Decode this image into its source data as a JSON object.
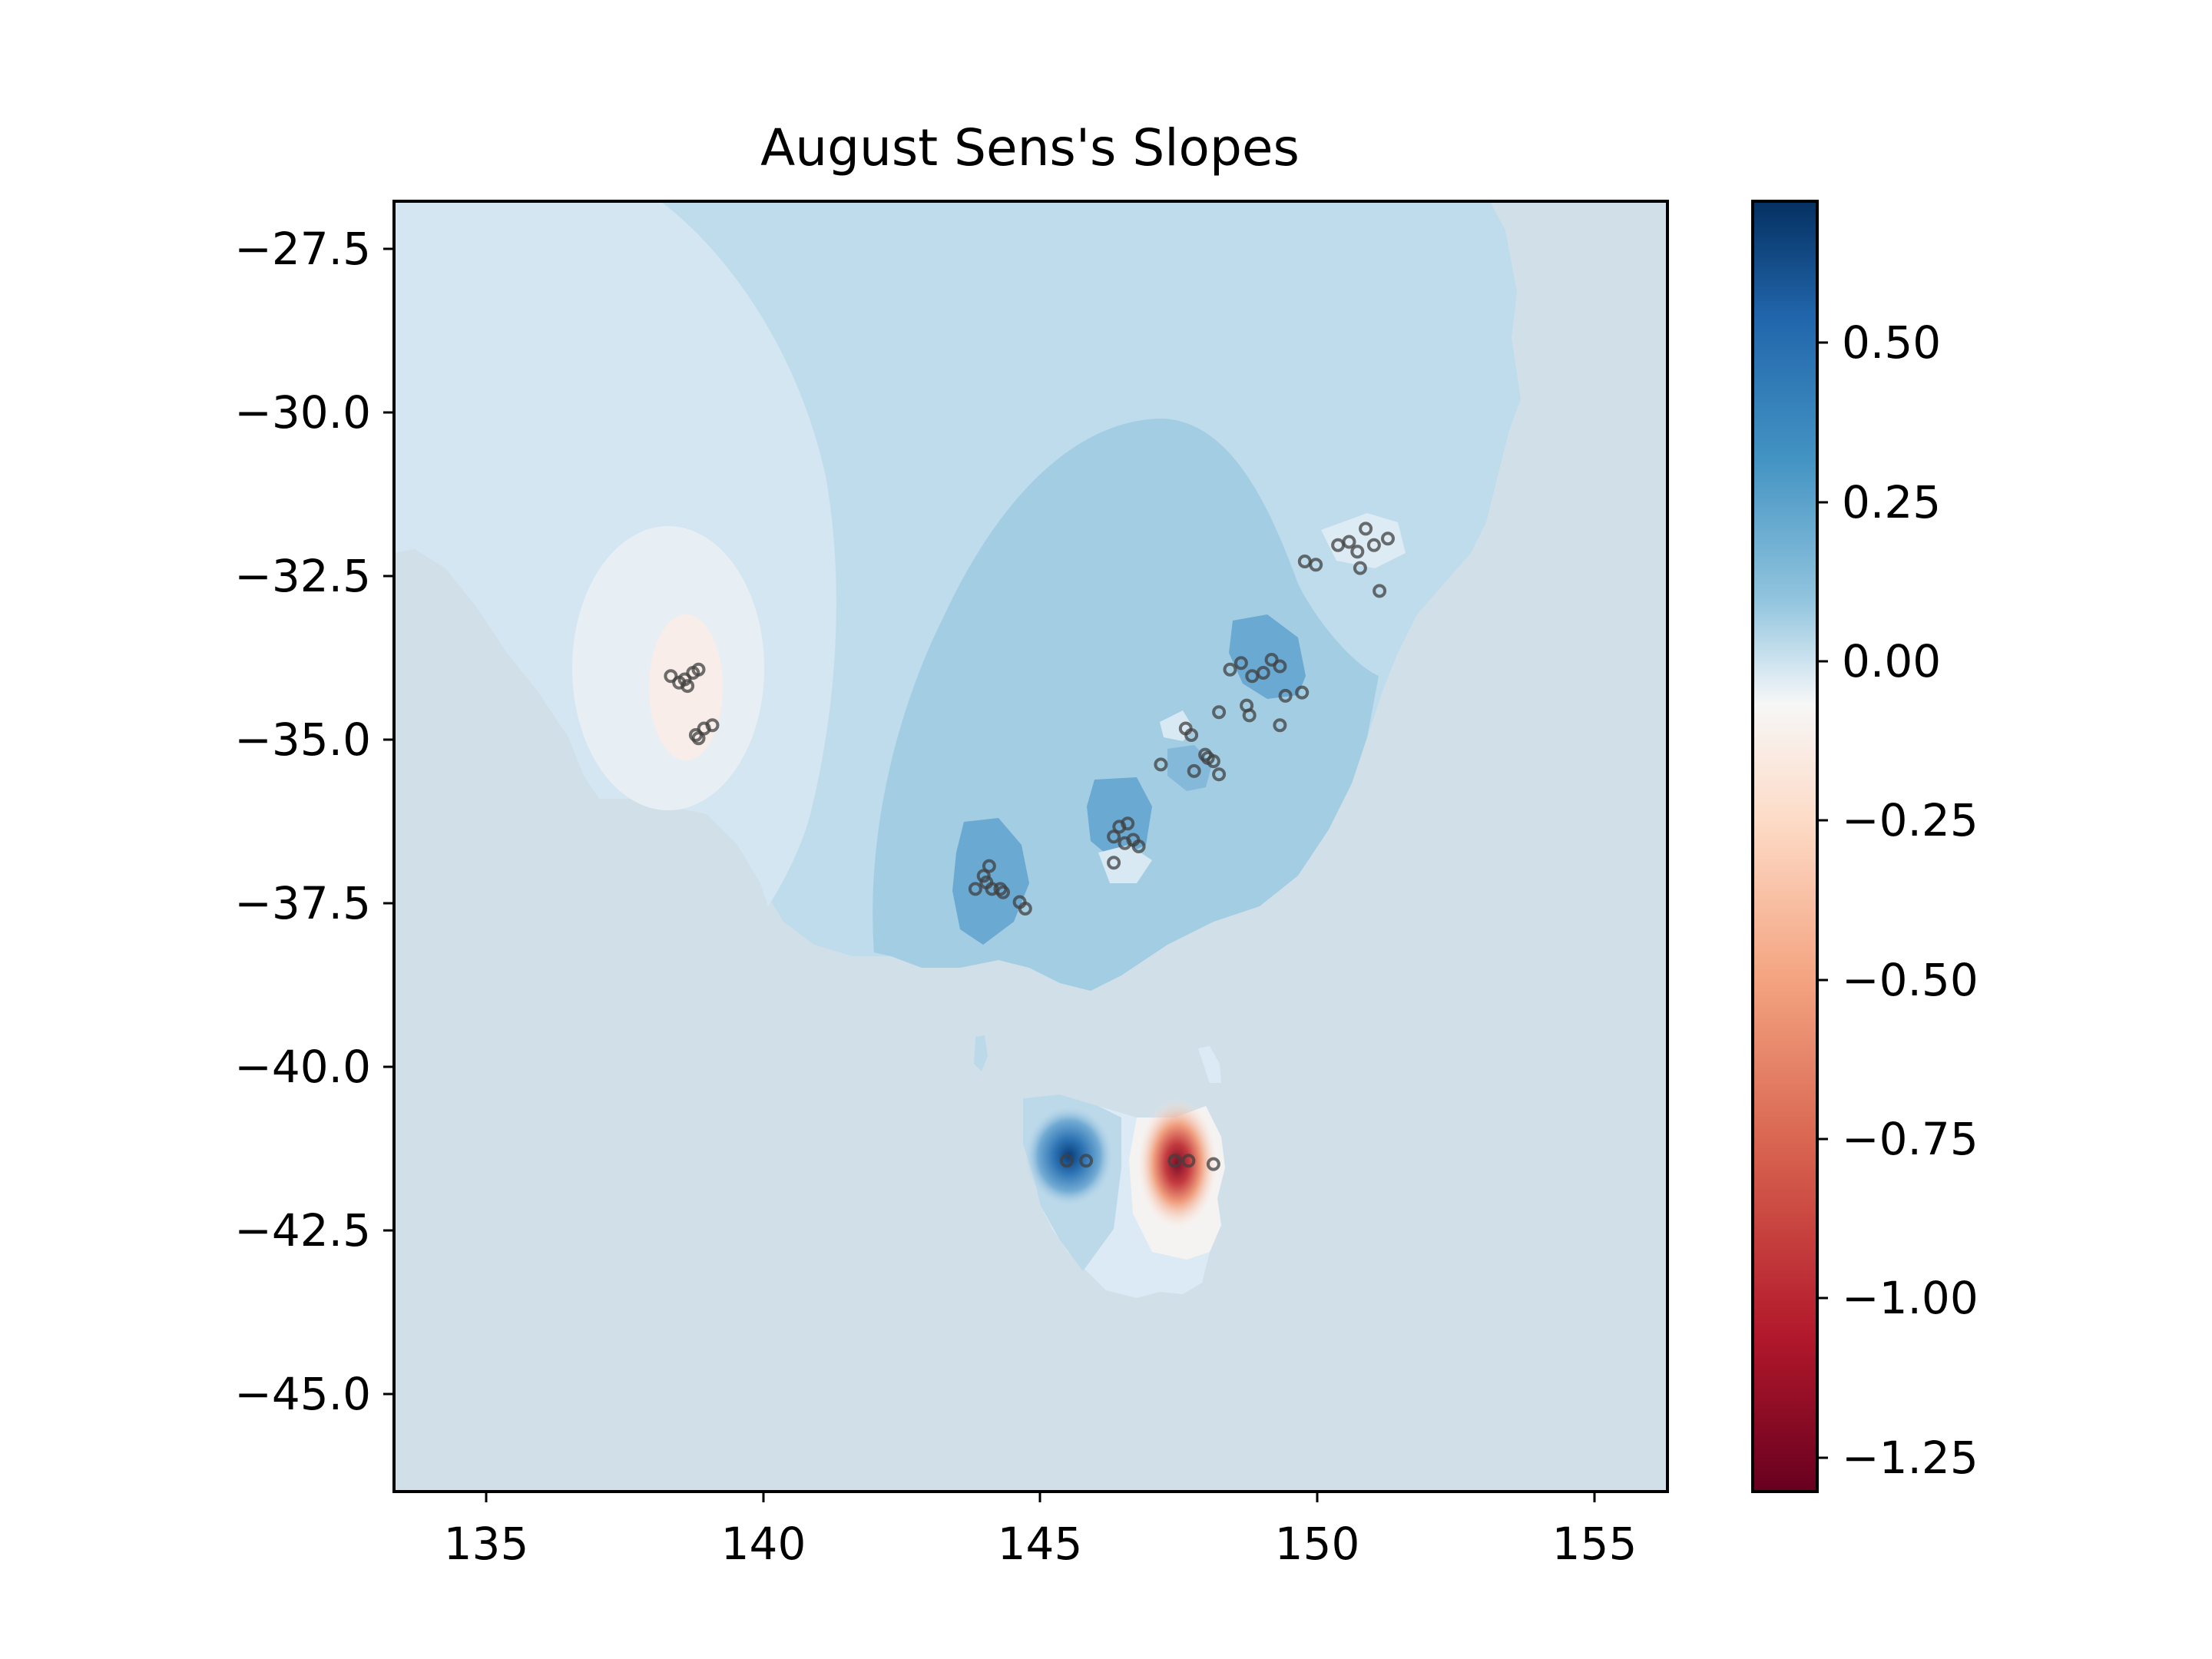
{
  "chart_data": {
    "type": "heatmap",
    "title": "August Sens's Slopes",
    "xlabel": "",
    "ylabel": "",
    "xlim": [
      133.3,
      156.3
    ],
    "ylim": [
      -46.5,
      -26.8
    ],
    "x_ticks": [
      135,
      140,
      145,
      150,
      155
    ],
    "x_tick_labels": [
      "135",
      "140",
      "145",
      "150",
      "155"
    ],
    "y_ticks": [
      -27.5,
      -30.0,
      -32.5,
      -35.0,
      -37.5,
      -40.0,
      -42.5,
      -45.0
    ],
    "y_tick_labels": [
      "−27.5",
      "−30.0",
      "−32.5",
      "−35.0",
      "−37.5",
      "−40.0",
      "−42.5",
      "−45.0"
    ],
    "grid": false,
    "colormap": "RdBu",
    "colorbar": {
      "range": [
        -1.3,
        0.73
      ],
      "ticks": [
        0.5,
        0.25,
        0.0,
        -0.25,
        -0.5,
        -0.75,
        -1.0,
        -1.25
      ],
      "tick_labels": [
        "0.50",
        "0.25",
        "0.00",
        "−0.25",
        "−0.50",
        "−0.75",
        "−1.00",
        "−1.25"
      ],
      "placement": "right"
    },
    "colors": {
      "ocean_land": "#d1e0e8",
      "low_positive": "#d4e6f1",
      "moderate_positive": "#bedcec",
      "mid_positive": "#a3cde3",
      "high_positive": "#6aa9d2",
      "strong_positive": "#2166ac",
      "near_zero": "#f7f7f7",
      "slight_negative": "#fae7dd",
      "strong_negative": "#b2182b",
      "station": "#404040"
    },
    "stations": [
      [
        138.3,
        -34.05
      ],
      [
        138.45,
        -34.15
      ],
      [
        138.6,
        -34.2
      ],
      [
        138.7,
        -34.0
      ],
      [
        138.8,
        -33.95
      ],
      [
        138.55,
        -34.1
      ],
      [
        138.75,
        -34.95
      ],
      [
        138.9,
        -34.85
      ],
      [
        139.05,
        -34.8
      ],
      [
        138.8,
        -35.0
      ],
      [
        143.8,
        -37.3
      ],
      [
        143.95,
        -37.1
      ],
      [
        144.05,
        -36.95
      ],
      [
        144.1,
        -37.3
      ],
      [
        144.25,
        -37.3
      ],
      [
        144.3,
        -37.35
      ],
      [
        144.6,
        -37.5
      ],
      [
        144.7,
        -37.6
      ],
      [
        144.0,
        -37.2
      ],
      [
        146.3,
        -36.5
      ],
      [
        146.4,
        -36.35
      ],
      [
        146.55,
        -36.3
      ],
      [
        146.65,
        -36.55
      ],
      [
        146.75,
        -36.65
      ],
      [
        146.3,
        -36.9
      ],
      [
        146.5,
        -36.6
      ],
      [
        147.15,
        -35.4
      ],
      [
        147.6,
        -34.85
      ],
      [
        147.7,
        -34.95
      ],
      [
        148.0,
        -35.3
      ],
      [
        147.75,
        -35.5
      ],
      [
        148.1,
        -35.35
      ],
      [
        148.2,
        -35.55
      ],
      [
        147.95,
        -35.25
      ],
      [
        148.2,
        -34.6
      ],
      [
        148.4,
        -33.95
      ],
      [
        148.6,
        -33.85
      ],
      [
        148.8,
        -34.05
      ],
      [
        149.0,
        -34.0
      ],
      [
        149.15,
        -33.8
      ],
      [
        149.3,
        -33.9
      ],
      [
        149.4,
        -34.35
      ],
      [
        149.7,
        -34.3
      ],
      [
        149.3,
        -34.8
      ],
      [
        148.7,
        -34.5
      ],
      [
        148.75,
        -34.65
      ],
      [
        149.75,
        -32.3
      ],
      [
        149.95,
        -32.35
      ],
      [
        150.35,
        -32.05
      ],
      [
        150.55,
        -32.0
      ],
      [
        150.7,
        -32.15
      ],
      [
        150.85,
        -31.8
      ],
      [
        151.0,
        -32.05
      ],
      [
        151.25,
        -31.95
      ],
      [
        150.75,
        -32.4
      ],
      [
        151.1,
        -32.75
      ],
      [
        145.45,
        -41.45
      ],
      [
        145.8,
        -41.45
      ],
      [
        147.4,
        -41.45
      ],
      [
        147.65,
        -41.45
      ],
      [
        148.1,
        -41.5
      ]
    ]
  }
}
